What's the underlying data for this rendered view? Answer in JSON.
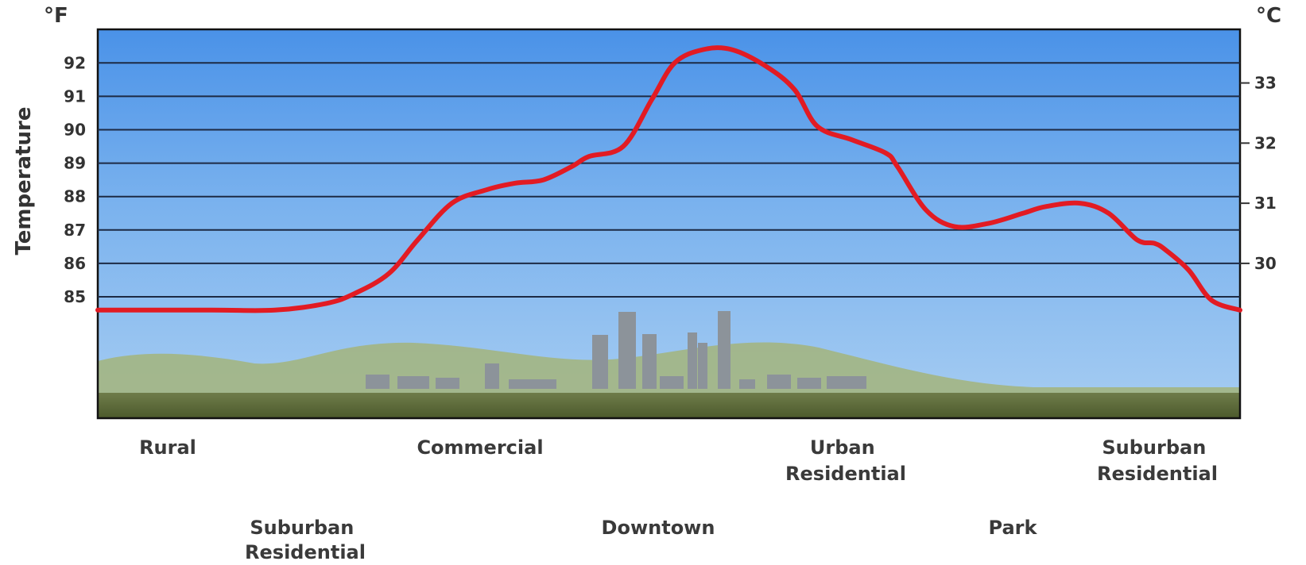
{
  "chart_data": {
    "type": "line",
    "title": "",
    "ylabel": "Temperature",
    "y_unit_left": "°F",
    "y_unit_right": "°C",
    "ylim_f": [
      84,
      92.9
    ],
    "yticks_f": [
      "85",
      "86",
      "87",
      "88",
      "89",
      "90",
      "91",
      "92"
    ],
    "yticks_c": [
      "30",
      "31",
      "32",
      "33"
    ],
    "grid": true,
    "legend": "none",
    "line_color": "#e21b23",
    "x_categories_top": [
      {
        "line1": "Rural",
        "line2": ""
      },
      {
        "line1": "Commercial",
        "line2": ""
      },
      {
        "line1": "Urban",
        "line2": "Residential"
      },
      {
        "line1": "Suburban",
        "line2": "Residential"
      }
    ],
    "x_categories_bottom": [
      {
        "line1": "Suburban",
        "line2": "Residential"
      },
      {
        "line1": "Downtown",
        "line2": ""
      },
      {
        "line1": "Park",
        "line2": ""
      }
    ],
    "series": [
      {
        "x": [
          0,
          0.1,
          0.155,
          0.2,
          0.225,
          0.255,
          0.28,
          0.31,
          0.34,
          0.365,
          0.39,
          0.415,
          0.43,
          0.46,
          0.485,
          0.505,
          0.53,
          0.555,
          0.585,
          0.61,
          0.63,
          0.66,
          0.69,
          0.7,
          0.725,
          0.75,
          0.78,
          0.81,
          0.83,
          0.86,
          0.885,
          0.91,
          0.925,
          0.935,
          0.955,
          0.975,
          1.0
        ],
        "values": [
          84.6,
          84.6,
          84.6,
          84.8,
          85.1,
          85.7,
          86.7,
          87.8,
          88.2,
          88.4,
          88.5,
          88.9,
          89.2,
          89.5,
          90.9,
          92.0,
          92.4,
          92.4,
          91.9,
          91.2,
          90.1,
          89.7,
          89.3,
          88.9,
          87.6,
          87.1,
          87.2,
          87.5,
          87.7,
          87.8,
          87.5,
          86.7,
          86.6,
          86.4,
          85.8,
          84.9,
          84.6
        ]
      }
    ]
  }
}
